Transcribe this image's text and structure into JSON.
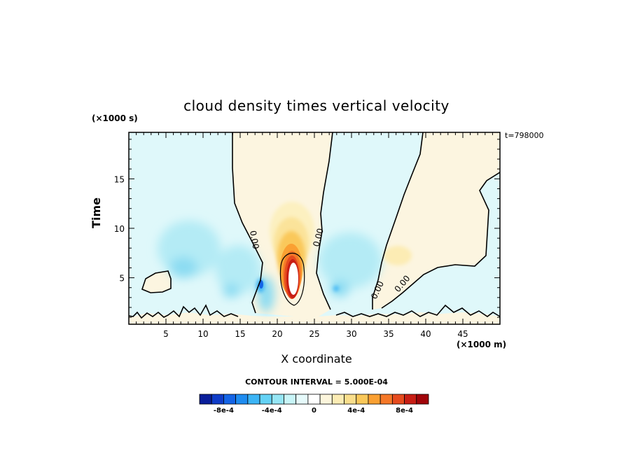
{
  "chart_data": {
    "type": "heatmap",
    "title": "cloud density times vertical velocity",
    "xlabel": "X coordinate",
    "ylabel": "Time",
    "x_unit": "(×1000 m)",
    "y_unit": "(×1000 s)",
    "time_label": "t=798000",
    "xlim": [
      0,
      50
    ],
    "ylim": [
      0.3,
      19.7
    ],
    "x_ticks": [
      "5",
      "10",
      "15",
      "20",
      "25",
      "30",
      "35",
      "40",
      "45"
    ],
    "y_ticks": [
      "5",
      "10",
      "15"
    ],
    "contour_label": "0.00",
    "contour_interval_text": "CONTOUR INTERVAL = 5.000E-04",
    "colorbar": {
      "ticks": [
        "-8e-4",
        "-4e-4",
        "0",
        "4e-4",
        "8e-4"
      ],
      "colors": [
        "#0a1e9a",
        "#0f3cc8",
        "#1464e6",
        "#1e8cf0",
        "#3cb4f5",
        "#64d2f5",
        "#96e6f5",
        "#c8f5f8",
        "#e6fafb",
        "#ffffff",
        "#fcf5dc",
        "#fcecb4",
        "#fade8c",
        "#fac85a",
        "#faa032",
        "#f57828",
        "#e64b1e",
        "#c81e14",
        "#a0050a"
      ]
    },
    "features": [
      {
        "kind": "max",
        "x": 22,
        "y": 4.5,
        "level": "over 8e-4"
      },
      {
        "kind": "positive",
        "x": 22,
        "y": 9,
        "level": "1e-4"
      },
      {
        "kind": "positive",
        "x": 37,
        "y": 6.5,
        "level": "1e-4"
      },
      {
        "kind": "min",
        "x": 17.8,
        "y": 4.2,
        "level": "-6e-4"
      },
      {
        "kind": "min",
        "x": 28,
        "y": 3.7,
        "level": "-4e-4"
      },
      {
        "kind": "min",
        "x": 8,
        "y": 5,
        "level": "-3e-4"
      }
    ],
    "grid": false,
    "legend": "colorbar bottom"
  }
}
